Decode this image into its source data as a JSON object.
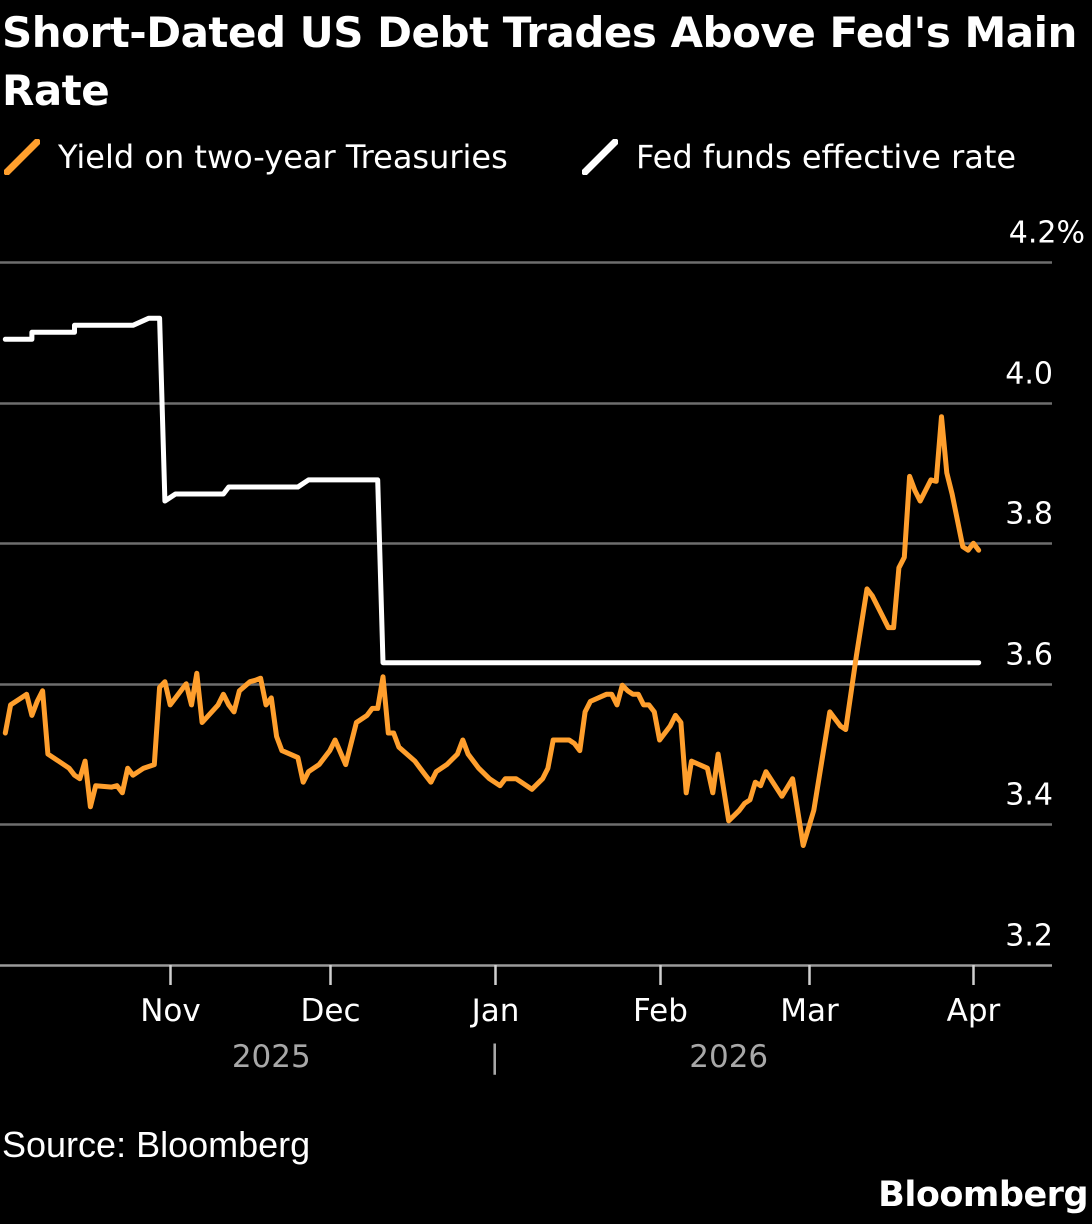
{
  "chart_data": {
    "type": "line",
    "title": "Short-Dated US Debt Trades Above Fed's Main Rate",
    "source": "Source: Bloomberg",
    "brand": "Bloomberg",
    "ylim": [
      3.2,
      4.2
    ],
    "yticks": [
      {
        "value": 3.2,
        "label": "3.2"
      },
      {
        "value": 3.4,
        "label": "3.4"
      },
      {
        "value": 3.6,
        "label": "3.6"
      },
      {
        "value": 3.8,
        "label": "3.8"
      },
      {
        "value": 4.0,
        "label": "4.0"
      },
      {
        "value": 4.2,
        "label": "4.2%"
      }
    ],
    "xlim": [
      "2025-09-30",
      "2026-04-06"
    ],
    "xticks": [
      {
        "date": "2025-11-01",
        "label": "Nov"
      },
      {
        "date": "2025-12-01",
        "label": "Dec"
      },
      {
        "date": "2026-01-01",
        "label": "Jan"
      },
      {
        "date": "2026-02-01",
        "label": "Feb"
      },
      {
        "date": "2026-03-01",
        "label": "Mar"
      },
      {
        "date": "2026-04-01",
        "label": "Apr"
      }
    ],
    "year_labels": [
      {
        "date": "2025-11-20",
        "label": "2025"
      },
      {
        "date": "2026-01-01",
        "label": "|"
      },
      {
        "date": "2026-02-14",
        "label": "2026"
      }
    ],
    "grid": true,
    "legend_position": "top-left",
    "series": [
      {
        "name": "Yield on two-year Treasuries",
        "color": "#ff9f2d",
        "points": [
          [
            "2025-10-01",
            3.53
          ],
          [
            "2025-10-02",
            3.57
          ],
          [
            "2025-10-04",
            3.58
          ],
          [
            "2025-10-05",
            3.585
          ],
          [
            "2025-10-06",
            3.555
          ],
          [
            "2025-10-07",
            3.575
          ],
          [
            "2025-10-08",
            3.59
          ],
          [
            "2025-10-09",
            3.5
          ],
          [
            "2025-10-11",
            3.49
          ],
          [
            "2025-10-13",
            3.48
          ],
          [
            "2025-10-14",
            3.47
          ],
          [
            "2025-10-15",
            3.465
          ],
          [
            "2025-10-16",
            3.49
          ],
          [
            "2025-10-17",
            3.425
          ],
          [
            "2025-10-18",
            3.455
          ],
          [
            "2025-10-21",
            3.453
          ],
          [
            "2025-10-22",
            3.455
          ],
          [
            "2025-10-23",
            3.445
          ],
          [
            "2025-10-24",
            3.48
          ],
          [
            "2025-10-25",
            3.47
          ],
          [
            "2025-10-27",
            3.48
          ],
          [
            "2025-10-29",
            3.485
          ],
          [
            "2025-10-30",
            3.595
          ],
          [
            "2025-10-31",
            3.603
          ],
          [
            "2025-11-01",
            3.57
          ],
          [
            "2025-11-03",
            3.59
          ],
          [
            "2025-11-04",
            3.6
          ],
          [
            "2025-11-05",
            3.57
          ],
          [
            "2025-11-06",
            3.615
          ],
          [
            "2025-11-07",
            3.545
          ],
          [
            "2025-11-10",
            3.57
          ],
          [
            "2025-11-11",
            3.585
          ],
          [
            "2025-11-12",
            3.57
          ],
          [
            "2025-11-13",
            3.56
          ],
          [
            "2025-11-14",
            3.59
          ],
          [
            "2025-11-16",
            3.603
          ],
          [
            "2025-11-17",
            3.605
          ],
          [
            "2025-11-18",
            3.608
          ],
          [
            "2025-11-19",
            3.57
          ],
          [
            "2025-11-20",
            3.58
          ],
          [
            "2025-11-21",
            3.525
          ],
          [
            "2025-11-22",
            3.505
          ],
          [
            "2025-11-25",
            3.495
          ],
          [
            "2025-11-26",
            3.46
          ],
          [
            "2025-11-27",
            3.475
          ],
          [
            "2025-11-29",
            3.485
          ],
          [
            "2025-12-01",
            3.505
          ],
          [
            "2025-12-02",
            3.52
          ],
          [
            "2025-12-04",
            3.485
          ],
          [
            "2025-12-06",
            3.545
          ],
          [
            "2025-12-08",
            3.555
          ],
          [
            "2025-12-09",
            3.565
          ],
          [
            "2025-12-10",
            3.565
          ],
          [
            "2025-12-11",
            3.61
          ],
          [
            "2025-12-12",
            3.53
          ],
          [
            "2025-12-13",
            3.53
          ],
          [
            "2025-12-14",
            3.51
          ],
          [
            "2025-12-17",
            3.49
          ],
          [
            "2025-12-18",
            3.48
          ],
          [
            "2025-12-19",
            3.47
          ],
          [
            "2025-12-20",
            3.46
          ],
          [
            "2025-12-21",
            3.475
          ],
          [
            "2025-12-23",
            3.485
          ],
          [
            "2025-12-25",
            3.5
          ],
          [
            "2025-12-26",
            3.52
          ],
          [
            "2025-12-27",
            3.5
          ],
          [
            "2025-12-29",
            3.48
          ],
          [
            "2025-12-31",
            3.465
          ],
          [
            "2026-01-02",
            3.455
          ],
          [
            "2026-01-03",
            3.465
          ],
          [
            "2026-01-05",
            3.465
          ],
          [
            "2026-01-06",
            3.46
          ],
          [
            "2026-01-08",
            3.45
          ],
          [
            "2026-01-10",
            3.465
          ],
          [
            "2026-01-11",
            3.48
          ],
          [
            "2026-01-12",
            3.52
          ],
          [
            "2026-01-15",
            3.52
          ],
          [
            "2026-01-16",
            3.515
          ],
          [
            "2026-01-17",
            3.505
          ],
          [
            "2026-01-18",
            3.56
          ],
          [
            "2026-01-19",
            3.575
          ],
          [
            "2026-01-22",
            3.585
          ],
          [
            "2026-01-23",
            3.585
          ],
          [
            "2026-01-24",
            3.57
          ],
          [
            "2026-01-25",
            3.598
          ],
          [
            "2026-01-26",
            3.59
          ],
          [
            "2026-01-27",
            3.585
          ],
          [
            "2026-01-28",
            3.585
          ],
          [
            "2026-01-29",
            3.57
          ],
          [
            "2026-01-30",
            3.57
          ],
          [
            "2026-01-31",
            3.56
          ],
          [
            "2026-02-01",
            3.52
          ],
          [
            "2026-02-03",
            3.54
          ],
          [
            "2026-02-04",
            3.555
          ],
          [
            "2026-02-05",
            3.545
          ],
          [
            "2026-02-06",
            3.445
          ],
          [
            "2026-02-07",
            3.49
          ],
          [
            "2026-02-10",
            3.48
          ],
          [
            "2026-02-11",
            3.445
          ],
          [
            "2026-02-12",
            3.5
          ],
          [
            "2026-02-14",
            3.405
          ],
          [
            "2026-02-16",
            3.42
          ],
          [
            "2026-02-17",
            3.43
          ],
          [
            "2026-02-18",
            3.435
          ],
          [
            "2026-02-19",
            3.46
          ],
          [
            "2026-02-20",
            3.455
          ],
          [
            "2026-02-21",
            3.475
          ],
          [
            "2026-02-24",
            3.44
          ],
          [
            "2026-02-26",
            3.465
          ],
          [
            "2026-02-28",
            3.37
          ],
          [
            "2026-03-02",
            3.42
          ],
          [
            "2026-03-05",
            3.56
          ],
          [
            "2026-03-07",
            3.54
          ],
          [
            "2026-03-08",
            3.535
          ],
          [
            "2026-03-10",
            3.64
          ],
          [
            "2026-03-12",
            3.735
          ],
          [
            "2026-03-13",
            3.725
          ],
          [
            "2026-03-15",
            3.695
          ],
          [
            "2026-03-16",
            3.68
          ],
          [
            "2026-03-17",
            3.68
          ],
          [
            "2026-03-18",
            3.765
          ],
          [
            "2026-03-19",
            3.78
          ],
          [
            "2026-03-20",
            3.895
          ],
          [
            "2026-03-21",
            3.875
          ],
          [
            "2026-03-22",
            3.86
          ],
          [
            "2026-03-24",
            3.89
          ],
          [
            "2026-03-25",
            3.888
          ],
          [
            "2026-03-26",
            3.98
          ],
          [
            "2026-03-27",
            3.9
          ],
          [
            "2026-03-28",
            3.87
          ],
          [
            "2026-03-30",
            3.795
          ],
          [
            "2026-03-31",
            3.79
          ],
          [
            "2026-04-01",
            3.8
          ],
          [
            "2026-04-02",
            3.79
          ]
        ]
      },
      {
        "name": "Fed funds effective rate",
        "color": "#ffffff",
        "points": [
          [
            "2025-10-01",
            4.09
          ],
          [
            "2025-10-06",
            4.09
          ],
          [
            "2025-10-06",
            4.1
          ],
          [
            "2025-10-14",
            4.1
          ],
          [
            "2025-10-14",
            4.11
          ],
          [
            "2025-10-22",
            4.11
          ],
          [
            "2025-10-25",
            4.11
          ],
          [
            "2025-10-28",
            4.12
          ],
          [
            "2025-10-30",
            4.12
          ],
          [
            "2025-10-31",
            3.86
          ],
          [
            "2025-11-02",
            3.87
          ],
          [
            "2025-11-11",
            3.87
          ],
          [
            "2025-11-12",
            3.88
          ],
          [
            "2025-11-25",
            3.88
          ],
          [
            "2025-11-27",
            3.89
          ],
          [
            "2025-12-10",
            3.89
          ],
          [
            "2025-12-11",
            3.63
          ],
          [
            "2026-04-02",
            3.63
          ]
        ]
      }
    ]
  }
}
